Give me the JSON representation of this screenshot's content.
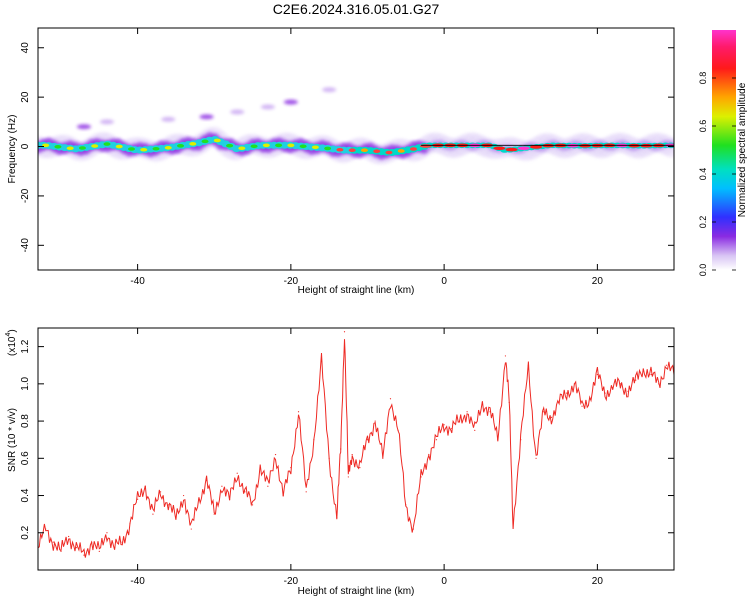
{
  "title": "C2E6.2024.316.05.01.G27",
  "colors": {
    "snr_line": "#ee2a24",
    "axis": "#000000",
    "background": "#ffffff"
  },
  "chart_data": [
    {
      "type": "heatmap",
      "title": "C2E6.2024.316.05.01.G27",
      "xlabel": "Height of straight line (km)",
      "ylabel": "Frequency (Hz)",
      "xlim": [
        -53,
        30
      ],
      "ylim": [
        -50,
        48
      ],
      "x_ticks": [
        -40,
        -20,
        0,
        20
      ],
      "y_ticks": [
        40,
        20,
        0,
        -20,
        -40
      ],
      "x_tick_labels": [
        "-40",
        "-20",
        "0",
        "20"
      ],
      "y_tick_labels": [
        "40",
        "20",
        "0",
        "-20",
        "-40"
      ],
      "colorbar": {
        "label": "Normalized spectral amplitude",
        "range": [
          0,
          1
        ],
        "ticks": [
          0.0,
          0.2,
          0.4,
          0.6,
          0.8
        ],
        "tick_labels": [
          "0.0",
          "0.2",
          "0.4",
          "0.6",
          "0.8"
        ],
        "colormap": "rainbow (white-violet-blue-cyan-green-yellow-red-magenta)"
      },
      "main_ridge": [
        {
          "x": -52,
          "f": 0.5
        },
        {
          "x": -48,
          "f": -1.0
        },
        {
          "x": -44,
          "f": 1.0
        },
        {
          "x": -40,
          "f": -1.5
        },
        {
          "x": -36,
          "f": -0.5
        },
        {
          "x": -32,
          "f": 1.5
        },
        {
          "x": -30,
          "f": 3.0
        },
        {
          "x": -27,
          "f": -1.0
        },
        {
          "x": -24,
          "f": 0.5
        },
        {
          "x": -20,
          "f": 0.5
        },
        {
          "x": -16,
          "f": -0.5
        },
        {
          "x": -13,
          "f": -1.5
        },
        {
          "x": -10,
          "f": -1.5
        },
        {
          "x": -7,
          "f": -2.5
        },
        {
          "x": -4,
          "f": -1.0
        },
        {
          "x": -2,
          "f": 0.5
        },
        {
          "x": 2,
          "f": 0.5
        },
        {
          "x": 6,
          "f": 0.5
        },
        {
          "x": 8,
          "f": -1.5
        },
        {
          "x": 11,
          "f": -0.5
        },
        {
          "x": 14,
          "f": 0.5
        },
        {
          "x": 18,
          "f": 0.3
        },
        {
          "x": 22,
          "f": 0.5
        },
        {
          "x": 26,
          "f": 0.3
        },
        {
          "x": 29,
          "f": 0.5
        }
      ],
      "secondary_ridge": [
        {
          "x": -47,
          "f": 8
        },
        {
          "x": -44,
          "f": 10
        },
        {
          "x": -36,
          "f": 11
        },
        {
          "x": -31,
          "f": 12
        },
        {
          "x": -27,
          "f": 14
        },
        {
          "x": -23,
          "f": 16
        },
        {
          "x": -20,
          "f": 18
        },
        {
          "x": -15,
          "f": 23
        }
      ]
    },
    {
      "type": "line",
      "xlabel": "Height of straight line (km)",
      "ylabel": "SNR (10 * v/v)",
      "y_multiplier_label": "(x10",
      "y_multiplier_exponent": "4",
      "y_multiplier_close": ")",
      "xlim": [
        -53,
        30
      ],
      "ylim": [
        0,
        1.3
      ],
      "x_ticks": [
        -40,
        -20,
        0,
        20
      ],
      "y_ticks": [
        0.2,
        0.4,
        0.6,
        0.8,
        1.0,
        1.2
      ],
      "x_tick_labels": [
        "-40",
        "-20",
        "0",
        "20"
      ],
      "y_tick_labels": [
        "0.2",
        "0.4",
        "0.6",
        "0.8",
        "1.0",
        "1.2"
      ],
      "series": [
        {
          "color": "#ee2a24",
          "x": [
            -53,
            -52,
            -51,
            -50,
            -49,
            -48,
            -47,
            -46,
            -45,
            -44,
            -43,
            -42,
            -41,
            -40,
            -39,
            -38,
            -37,
            -36,
            -35,
            -34,
            -33,
            -32,
            -31,
            -30,
            -29,
            -28,
            -27,
            -26,
            -25,
            -24,
            -23,
            -22,
            -21,
            -20,
            -19,
            -18,
            -17,
            -16,
            -15,
            -14,
            -13.5,
            -13,
            -12.5,
            -12,
            -11,
            -10,
            -9,
            -8,
            -7,
            -6,
            -5,
            -4,
            -3,
            -2,
            -1,
            0,
            1,
            2,
            3,
            4,
            5,
            6,
            7,
            8,
            8.5,
            9,
            10,
            11,
            12,
            13,
            14,
            15,
            16,
            17,
            18,
            19,
            20,
            21,
            22,
            23,
            24,
            25,
            26,
            27,
            28,
            29,
            30
          ],
          "y": [
            0.12,
            0.22,
            0.15,
            0.1,
            0.18,
            0.12,
            0.08,
            0.15,
            0.1,
            0.2,
            0.12,
            0.15,
            0.25,
            0.38,
            0.45,
            0.3,
            0.42,
            0.35,
            0.28,
            0.4,
            0.22,
            0.38,
            0.48,
            0.3,
            0.45,
            0.38,
            0.52,
            0.42,
            0.35,
            0.55,
            0.45,
            0.62,
            0.4,
            0.55,
            0.85,
            0.42,
            0.7,
            1.12,
            0.6,
            0.28,
            0.65,
            1.28,
            0.5,
            0.62,
            0.55,
            0.7,
            0.8,
            0.6,
            0.92,
            0.75,
            0.35,
            0.22,
            0.5,
            0.62,
            0.7,
            0.78,
            0.76,
            0.8,
            0.85,
            0.75,
            0.9,
            0.85,
            0.7,
            1.15,
            0.9,
            0.25,
            0.7,
            1.1,
            0.6,
            0.85,
            0.82,
            0.9,
            0.95,
            1.0,
            0.88,
            0.92,
            1.05,
            0.95,
            0.98,
            1.0,
            0.96,
            1.02,
            1.08,
            1.05,
            1.0,
            1.1,
            1.05
          ]
        }
      ]
    }
  ]
}
